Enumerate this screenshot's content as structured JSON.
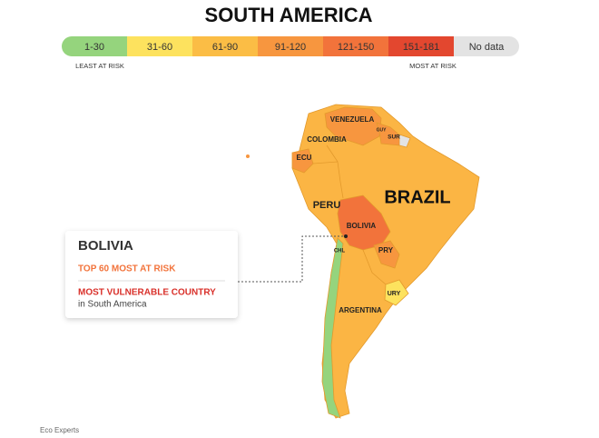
{
  "header": {
    "title": "SOUTH AMERICA"
  },
  "legend": {
    "items": [
      "1-30",
      "31-60",
      "61-90",
      "91-120",
      "121-150",
      "151-181",
      "No data"
    ],
    "colors": [
      "#95d47d",
      "#fde25e",
      "#fbbd45",
      "#f7963f",
      "#f2733b",
      "#e3472f",
      "#e3e3e3"
    ],
    "low_label": "LEAST AT RISK",
    "high_label": "MOST AT RISK"
  },
  "map": {
    "labels": [
      "VENEZUELA",
      "GUY",
      "SUR",
      "COLOMBIA",
      "ECU",
      "PERU",
      "BRAZIL",
      "BOLIVIA",
      "PRY",
      "CHL",
      "URY",
      "ARGENTINA"
    ]
  },
  "callout": {
    "title": "BOLIVIA",
    "subtitle": "TOP 60 MOST AT RISK",
    "highlight": "MOST VULNERABLE COUNTRY",
    "text": "in South America"
  },
  "footer": {
    "source": "Eco Experts"
  }
}
